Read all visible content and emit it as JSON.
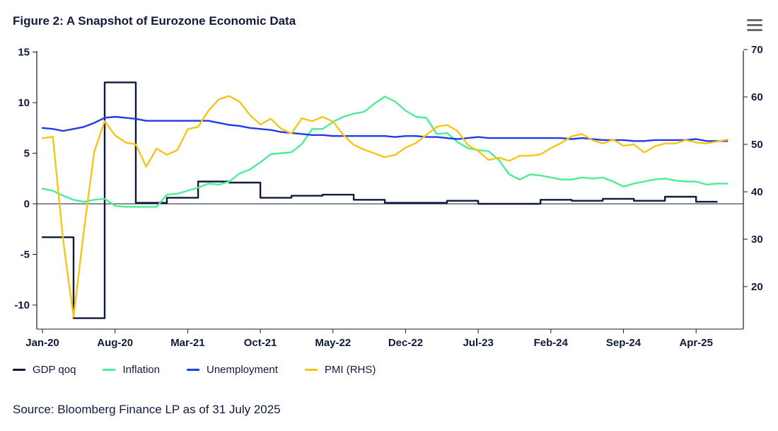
{
  "header": {
    "title": "Figure 2: A Snapshot of Eurozone Economic Data",
    "menu_icon": "hamburger-menu-icon"
  },
  "source": "Source: Bloomberg Finance LP as of 31 July 2025",
  "colors": {
    "gdp": "#0f1b3d",
    "inflation": "#4ded95",
    "unemployment": "#1f3de6",
    "pmi": "#f5c518",
    "axis": "#0f1b3d"
  },
  "chart_data": {
    "type": "line",
    "x_tick_labels": [
      "Jan-20",
      "Aug-20",
      "Mar-21",
      "Oct-21",
      "May-22",
      "Dec-22",
      "Jul-23",
      "Feb-24",
      "Sep-24",
      "Apr-25"
    ],
    "left_axis": {
      "range": [
        -12.5,
        15
      ],
      "ticks": [
        15,
        10,
        5,
        0,
        -5,
        -10
      ],
      "tick_labels": [
        "15",
        "10",
        "5",
        "0",
        "-5",
        "-10"
      ]
    },
    "right_axis": {
      "range": [
        12,
        70
      ],
      "ticks": [
        70,
        60,
        50,
        40,
        30,
        20
      ],
      "tick_labels": [
        "70",
        "60",
        "50",
        "40",
        "30",
        "20"
      ]
    },
    "legend_position": "bottom-left",
    "grid": false,
    "series": [
      {
        "name": "GDP qoq",
        "axis": "left",
        "step": true,
        "points": [
          [
            0,
            -3.3
          ],
          [
            1,
            -3.3
          ],
          [
            2,
            -3.3
          ],
          [
            3,
            -11.3
          ],
          [
            4,
            -11.3
          ],
          [
            5,
            -11.3
          ],
          [
            6,
            12
          ],
          [
            7,
            12
          ],
          [
            8,
            12
          ],
          [
            9,
            0.1
          ],
          [
            10,
            0.1
          ],
          [
            11,
            0.1
          ],
          [
            12,
            0.6
          ],
          [
            13,
            0.6
          ],
          [
            14,
            0.6
          ],
          [
            15,
            2.2
          ],
          [
            16,
            2.2
          ],
          [
            17,
            2.2
          ],
          [
            18,
            2.1
          ],
          [
            19,
            2.1
          ],
          [
            20,
            2.1
          ],
          [
            21,
            0.6
          ],
          [
            22,
            0.6
          ],
          [
            23,
            0.6
          ],
          [
            24,
            0.8
          ],
          [
            25,
            0.8
          ],
          [
            26,
            0.8
          ],
          [
            27,
            0.9
          ],
          [
            28,
            0.9
          ],
          [
            29,
            0.9
          ],
          [
            30,
            0.4
          ],
          [
            31,
            0.4
          ],
          [
            32,
            0.4
          ],
          [
            33,
            0.1
          ],
          [
            34,
            0.1
          ],
          [
            35,
            0.1
          ],
          [
            36,
            0.1
          ],
          [
            37,
            0.1
          ],
          [
            38,
            0.1
          ],
          [
            39,
            0.3
          ],
          [
            40,
            0.3
          ],
          [
            41,
            0.3
          ],
          [
            42,
            0
          ],
          [
            43,
            0
          ],
          [
            44,
            0
          ],
          [
            45,
            0
          ],
          [
            46,
            0
          ],
          [
            47,
            0
          ],
          [
            48,
            0.4
          ],
          [
            49,
            0.4
          ],
          [
            50,
            0.4
          ],
          [
            51,
            0.3
          ],
          [
            52,
            0.3
          ],
          [
            53,
            0.3
          ],
          [
            54,
            0.5
          ],
          [
            55,
            0.5
          ],
          [
            56,
            0.5
          ],
          [
            57,
            0.3
          ],
          [
            58,
            0.3
          ],
          [
            59,
            0.3
          ],
          [
            60,
            0.7
          ],
          [
            61,
            0.7
          ],
          [
            62,
            0.7
          ],
          [
            63,
            0.2
          ],
          [
            64,
            0.2
          ],
          [
            65,
            0.2
          ]
        ]
      },
      {
        "name": "Inflation",
        "axis": "left",
        "points": [
          [
            0,
            1.5
          ],
          [
            1,
            1.3
          ],
          [
            2,
            0.8
          ],
          [
            3,
            0.4
          ],
          [
            4,
            0.2
          ],
          [
            5,
            0.4
          ],
          [
            6,
            0.5
          ],
          [
            7,
            -0.2
          ],
          [
            8,
            -0.3
          ],
          [
            9,
            -0.3
          ],
          [
            10,
            -0.3
          ],
          [
            11,
            -0.3
          ],
          [
            12,
            0.9
          ],
          [
            13,
            1.0
          ],
          [
            14,
            1.3
          ],
          [
            15,
            1.6
          ],
          [
            16,
            2.0
          ],
          [
            17,
            1.9
          ],
          [
            18,
            2.2
          ],
          [
            19,
            3.0
          ],
          [
            20,
            3.4
          ],
          [
            21,
            4.1
          ],
          [
            22,
            4.9
          ],
          [
            23,
            5.0
          ],
          [
            24,
            5.1
          ],
          [
            25,
            5.9
          ],
          [
            26,
            7.4
          ],
          [
            27,
            7.4
          ],
          [
            28,
            8.1
          ],
          [
            29,
            8.6
          ],
          [
            30,
            8.9
          ],
          [
            31,
            9.1
          ],
          [
            32,
            9.9
          ],
          [
            33,
            10.6
          ],
          [
            34,
            10.1
          ],
          [
            35,
            9.2
          ],
          [
            36,
            8.6
          ],
          [
            37,
            8.5
          ],
          [
            38,
            6.9
          ],
          [
            39,
            7.0
          ],
          [
            40,
            6.1
          ],
          [
            41,
            5.5
          ],
          [
            42,
            5.3
          ],
          [
            43,
            5.2
          ],
          [
            44,
            4.3
          ],
          [
            45,
            2.9
          ],
          [
            46,
            2.4
          ],
          [
            47,
            2.9
          ],
          [
            48,
            2.8
          ],
          [
            49,
            2.6
          ],
          [
            50,
            2.4
          ],
          [
            51,
            2.4
          ],
          [
            52,
            2.6
          ],
          [
            53,
            2.5
          ],
          [
            54,
            2.6
          ],
          [
            55,
            2.2
          ],
          [
            56,
            1.7
          ],
          [
            57,
            2.0
          ],
          [
            58,
            2.2
          ],
          [
            59,
            2.4
          ],
          [
            60,
            2.5
          ],
          [
            61,
            2.3
          ],
          [
            62,
            2.2
          ],
          [
            63,
            2.2
          ],
          [
            64,
            1.9
          ],
          [
            65,
            2.0
          ],
          [
            66,
            2.0
          ]
        ]
      },
      {
        "name": "Unemployment",
        "axis": "left",
        "points": [
          [
            0,
            7.5
          ],
          [
            1,
            7.4
          ],
          [
            2,
            7.2
          ],
          [
            3,
            7.4
          ],
          [
            4,
            7.6
          ],
          [
            5,
            8.0
          ],
          [
            6,
            8.5
          ],
          [
            7,
            8.6
          ],
          [
            8,
            8.5
          ],
          [
            9,
            8.4
          ],
          [
            10,
            8.2
          ],
          [
            12,
            8.2
          ],
          [
            14,
            8.2
          ],
          [
            16,
            8.2
          ],
          [
            17,
            8.0
          ],
          [
            18,
            7.8
          ],
          [
            19,
            7.7
          ],
          [
            20,
            7.5
          ],
          [
            21,
            7.4
          ],
          [
            22,
            7.3
          ],
          [
            23,
            7.1
          ],
          [
            24,
            7.0
          ],
          [
            25,
            6.9
          ],
          [
            26,
            6.8
          ],
          [
            27,
            6.8
          ],
          [
            28,
            6.7
          ],
          [
            30,
            6.7
          ],
          [
            32,
            6.7
          ],
          [
            33,
            6.7
          ],
          [
            34,
            6.6
          ],
          [
            35,
            6.7
          ],
          [
            36,
            6.7
          ],
          [
            37,
            6.6
          ],
          [
            38,
            6.6
          ],
          [
            39,
            6.5
          ],
          [
            40,
            6.4
          ],
          [
            41,
            6.5
          ],
          [
            42,
            6.6
          ],
          [
            43,
            6.5
          ],
          [
            44,
            6.5
          ],
          [
            46,
            6.5
          ],
          [
            48,
            6.5
          ],
          [
            50,
            6.5
          ],
          [
            51,
            6.4
          ],
          [
            52,
            6.5
          ],
          [
            53,
            6.4
          ],
          [
            54,
            6.3
          ],
          [
            56,
            6.3
          ],
          [
            57,
            6.2
          ],
          [
            58,
            6.2
          ],
          [
            59,
            6.3
          ],
          [
            60,
            6.3
          ],
          [
            61,
            6.3
          ],
          [
            62,
            6.3
          ],
          [
            63,
            6.4
          ],
          [
            64,
            6.2
          ],
          [
            65,
            6.2
          ],
          [
            66,
            6.2
          ]
        ]
      },
      {
        "name": "PMI (RHS)",
        "axis": "right",
        "points": [
          [
            0,
            51.3
          ],
          [
            1,
            51.6
          ],
          [
            2,
            29.7
          ],
          [
            3,
            13.6
          ],
          [
            4,
            31.9
          ],
          [
            5,
            48.5
          ],
          [
            6,
            54.9
          ],
          [
            7,
            51.9
          ],
          [
            8,
            50.4
          ],
          [
            9,
            50.0
          ],
          [
            10,
            45.3
          ],
          [
            11,
            49.1
          ],
          [
            12,
            47.8
          ],
          [
            13,
            48.8
          ],
          [
            14,
            53.2
          ],
          [
            15,
            53.7
          ],
          [
            16,
            57.1
          ],
          [
            17,
            59.5
          ],
          [
            18,
            60.2
          ],
          [
            19,
            59.0
          ],
          [
            20,
            56.2
          ],
          [
            21,
            54.2
          ],
          [
            22,
            55.4
          ],
          [
            23,
            53.3
          ],
          [
            24,
            52.3
          ],
          [
            25,
            55.5
          ],
          [
            26,
            54.9
          ],
          [
            27,
            55.8
          ],
          [
            28,
            54.8
          ],
          [
            29,
            52.0
          ],
          [
            30,
            49.9
          ],
          [
            31,
            48.9
          ],
          [
            32,
            48.1
          ],
          [
            33,
            47.3
          ],
          [
            34,
            47.8
          ],
          [
            35,
            49.3
          ],
          [
            36,
            50.3
          ],
          [
            37,
            52.0
          ],
          [
            38,
            53.7
          ],
          [
            39,
            54.1
          ],
          [
            40,
            52.8
          ],
          [
            41,
            49.9
          ],
          [
            42,
            48.6
          ],
          [
            43,
            46.7
          ],
          [
            44,
            47.2
          ],
          [
            45,
            46.5
          ],
          [
            46,
            47.6
          ],
          [
            47,
            47.6
          ],
          [
            48,
            47.9
          ],
          [
            49,
            49.2
          ],
          [
            50,
            50.3
          ],
          [
            51,
            51.7
          ],
          [
            52,
            52.2
          ],
          [
            53,
            50.9
          ],
          [
            54,
            50.2
          ],
          [
            55,
            51.0
          ],
          [
            56,
            49.7
          ],
          [
            57,
            50.0
          ],
          [
            58,
            48.3
          ],
          [
            59,
            49.6
          ],
          [
            60,
            50.2
          ],
          [
            61,
            50.2
          ],
          [
            62,
            50.9
          ],
          [
            63,
            50.4
          ],
          [
            64,
            50.2
          ],
          [
            65,
            50.6
          ],
          [
            66,
            51.0
          ]
        ]
      }
    ]
  }
}
